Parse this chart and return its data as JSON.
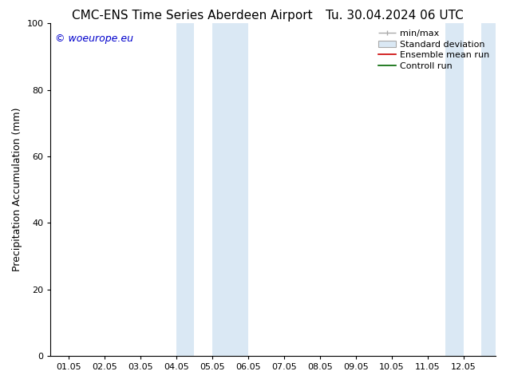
{
  "title_left": "CMC-ENS Time Series Aberdeen Airport",
  "title_right": "Tu. 30.04.2024 06 UTC",
  "ylabel": "Precipitation Accumulation (mm)",
  "watermark": "© woeurope.eu",
  "watermark_color": "#0000cc",
  "ylim": [
    0,
    100
  ],
  "yticks": [
    0,
    20,
    40,
    60,
    80,
    100
  ],
  "x_tick_labels": [
    "01.05",
    "02.05",
    "03.05",
    "04.05",
    "05.05",
    "06.05",
    "07.05",
    "08.05",
    "09.05",
    "10.05",
    "11.05",
    "12.05"
  ],
  "x_tick_positions": [
    0,
    1,
    2,
    3,
    4,
    5,
    6,
    7,
    8,
    9,
    10,
    11
  ],
  "xlim": [
    -0.5,
    11.9
  ],
  "shaded_regions": [
    {
      "x_start": 3.0,
      "x_end": 3.5,
      "color": "#dae8f4"
    },
    {
      "x_start": 4.0,
      "x_end": 5.0,
      "color": "#dae8f4"
    },
    {
      "x_start": 10.5,
      "x_end": 11.0,
      "color": "#dae8f4"
    },
    {
      "x_start": 11.5,
      "x_end": 11.9,
      "color": "#dae8f4"
    }
  ],
  "shade_color": "#dae8f4",
  "bg_color": "#ffffff",
  "plot_bg_color": "#ffffff",
  "title_fontsize": 11,
  "axis_label_fontsize": 9,
  "tick_fontsize": 8,
  "watermark_fontsize": 9,
  "legend_fontsize": 8
}
